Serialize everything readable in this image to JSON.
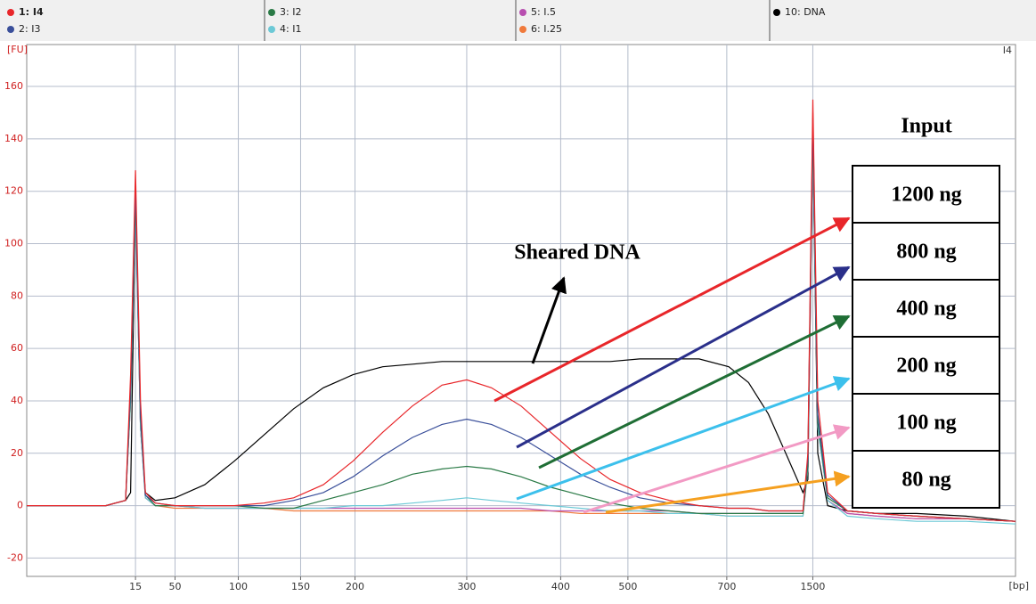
{
  "chart_data": {
    "type": "line",
    "x": [
      0,
      8,
      10,
      10.5,
      11,
      11.5,
      12,
      13,
      15,
      18,
      21,
      24,
      27,
      30,
      33,
      36,
      39,
      42,
      44.5,
      47,
      50,
      53,
      56,
      59,
      62,
      65,
      68,
      71,
      73,
      75,
      77,
      78.5,
      79,
      79.5,
      80,
      81,
      83,
      86,
      90,
      95,
      100
    ],
    "series": [
      {
        "name": "1: I4",
        "color": "#e8262a",
        "values": [
          0,
          0,
          2,
          50,
          128,
          40,
          5,
          1,
          0,
          0,
          0,
          1,
          3,
          8,
          17,
          28,
          38,
          46,
          48,
          45,
          38,
          28,
          18,
          10,
          5,
          2,
          0,
          -1,
          -1,
          -2,
          -2,
          -2,
          20,
          155,
          40,
          5,
          -2,
          -3,
          -4,
          -5,
          -6
        ]
      },
      {
        "name": "2: I3",
        "color": "#3a4f9a",
        "values": [
          0,
          0,
          2,
          45,
          122,
          35,
          4,
          1,
          0,
          0,
          0,
          0,
          2,
          5,
          11,
          19,
          26,
          31,
          33,
          31,
          26,
          19,
          12,
          7,
          3,
          1,
          0,
          -1,
          -1,
          -2,
          -2,
          -2,
          18,
          148,
          35,
          4,
          -2,
          -3,
          -4,
          -5,
          -6
        ]
      },
      {
        "name": "3: I2",
        "color": "#2a7a46",
        "values": [
          0,
          0,
          2,
          42,
          118,
          33,
          4,
          0,
          0,
          0,
          0,
          -1,
          -1,
          2,
          5,
          8,
          12,
          14,
          15,
          14,
          11,
          7,
          4,
          1,
          -1,
          -2,
          -3,
          -3,
          -3,
          -3,
          -3,
          -3,
          15,
          145,
          32,
          3,
          -2,
          -3,
          -4,
          -5,
          -6
        ]
      },
      {
        "name": "4: I1",
        "color": "#6cc9d6",
        "values": [
          0,
          0,
          2,
          40,
          115,
          30,
          3,
          0,
          0,
          -1,
          -1,
          -1,
          -1,
          -1,
          0,
          0,
          1,
          2,
          3,
          2,
          1,
          0,
          -1,
          -2,
          -2,
          -3,
          -3,
          -4,
          -4,
          -4,
          -4,
          -4,
          14,
          140,
          30,
          2,
          -4,
          -5,
          -6,
          -6,
          -7
        ]
      },
      {
        "name": "5: I.5",
        "color": "#b84fb0",
        "values": [
          0,
          0,
          2,
          40,
          116,
          30,
          3,
          0,
          0,
          -1,
          -1,
          -1,
          -1,
          -1,
          -1,
          -1,
          -1,
          -1,
          -1,
          -1,
          -1,
          -2,
          -2,
          -2,
          -2,
          -2,
          -3,
          -3,
          -3,
          -3,
          -3,
          -3,
          14,
          142,
          30,
          2,
          -3,
          -4,
          -5,
          -5,
          -6
        ]
      },
      {
        "name": "6: I.25",
        "color": "#f07a3c",
        "values": [
          0,
          0,
          2,
          40,
          120,
          32,
          3,
          0,
          -1,
          -1,
          -1,
          -1,
          -2,
          -2,
          -2,
          -2,
          -2,
          -2,
          -2,
          -2,
          -2,
          -2,
          -3,
          -3,
          -3,
          -3,
          -3,
          -4,
          -4,
          -4,
          -4,
          -4,
          15,
          150,
          32,
          2,
          -3,
          -4,
          -5,
          -5,
          -6
        ]
      },
      {
        "name": "10: DNA",
        "color": "#000000",
        "values": [
          0,
          0,
          2,
          5,
          118,
          30,
          5,
          2,
          3,
          8,
          17,
          27,
          37,
          45,
          50,
          53,
          54,
          55,
          55,
          55,
          55,
          55,
          55,
          55,
          56,
          56,
          56,
          53,
          47,
          35,
          18,
          5,
          10,
          140,
          20,
          0,
          -2,
          -3,
          -3,
          -4,
          -6
        ]
      }
    ],
    "xlim": [
      0,
      100
    ],
    "xticks": [
      {
        "value": 11.0,
        "label": "15"
      },
      {
        "value": 15.0,
        "label": "50"
      },
      {
        "value": 21.4,
        "label": "100"
      },
      {
        "value": 27.7,
        "label": "150"
      },
      {
        "value": 33.2,
        "label": "200"
      },
      {
        "value": 44.5,
        "label": "300"
      },
      {
        "value": 54.0,
        "label": "400"
      },
      {
        "value": 60.8,
        "label": "500"
      },
      {
        "value": 70.8,
        "label": "700"
      },
      {
        "value": 79.5,
        "label": "1500"
      }
    ],
    "ylim": [
      -27,
      176
    ],
    "yticks": [
      -20,
      0,
      20,
      40,
      60,
      80,
      100,
      120,
      140,
      160
    ],
    "x_label": "[bp]",
    "y_label": "[FU]",
    "sample_label": "I4",
    "grid": true,
    "legend_position": "top",
    "annotation": "Sheared DNA",
    "input_title": "Input",
    "input_labels": [
      "1200 ng",
      "800 ng",
      "400 ng",
      "200 ng",
      "100 ng",
      "80 ng"
    ]
  }
}
